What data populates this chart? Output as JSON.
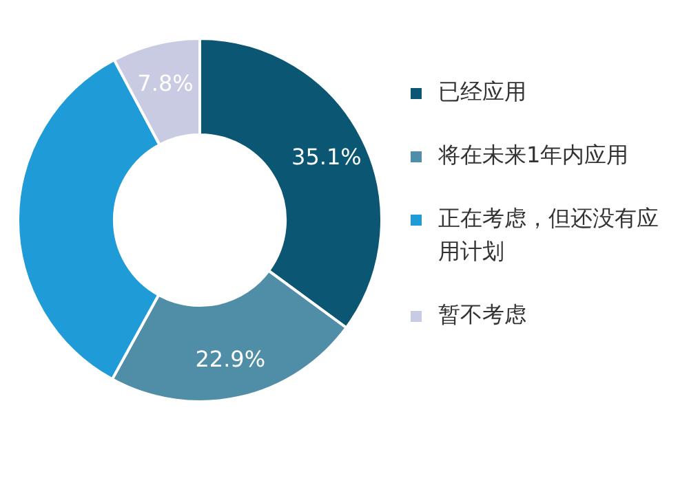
{
  "chart_data": {
    "type": "donut",
    "categories": [
      "已经应用",
      "将在未来1年内应用",
      "正在考虑，但还没有应用计划",
      "暂不考虑"
    ],
    "values": [
      35.1,
      22.9,
      34.2,
      7.8
    ],
    "colors": [
      "#0b5673",
      "#4f8ea6",
      "#1f9bd7",
      "#c9cbe3"
    ],
    "value_labels": [
      "35.1%",
      "22.9%",
      null,
      "7.8%"
    ],
    "legend": "right"
  }
}
